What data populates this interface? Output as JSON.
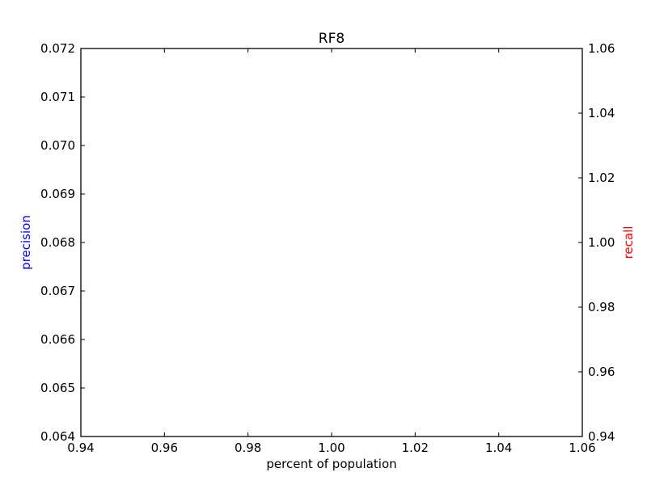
{
  "chart_data": {
    "type": "line",
    "title": "RF8",
    "xlabel": "percent of population",
    "ylabel_left": "precision",
    "ylabel_right": "recall",
    "ylabel_left_color": "#0000ff",
    "ylabel_right_color": "#ff0000",
    "xlim": [
      0.94,
      1.06
    ],
    "ylim_left": [
      0.064,
      0.072
    ],
    "ylim_right": [
      0.94,
      1.06
    ],
    "x_ticks": [
      "0.94",
      "0.96",
      "0.98",
      "1.00",
      "1.02",
      "1.04",
      "1.06"
    ],
    "y_left_ticks": [
      "0.064",
      "0.065",
      "0.066",
      "0.067",
      "0.068",
      "0.069",
      "0.070",
      "0.071",
      "0.072"
    ],
    "y_right_ticks": [
      "0.94",
      "0.96",
      "0.98",
      "1.00",
      "1.02",
      "1.04",
      "1.06"
    ],
    "grid": false,
    "series": []
  }
}
